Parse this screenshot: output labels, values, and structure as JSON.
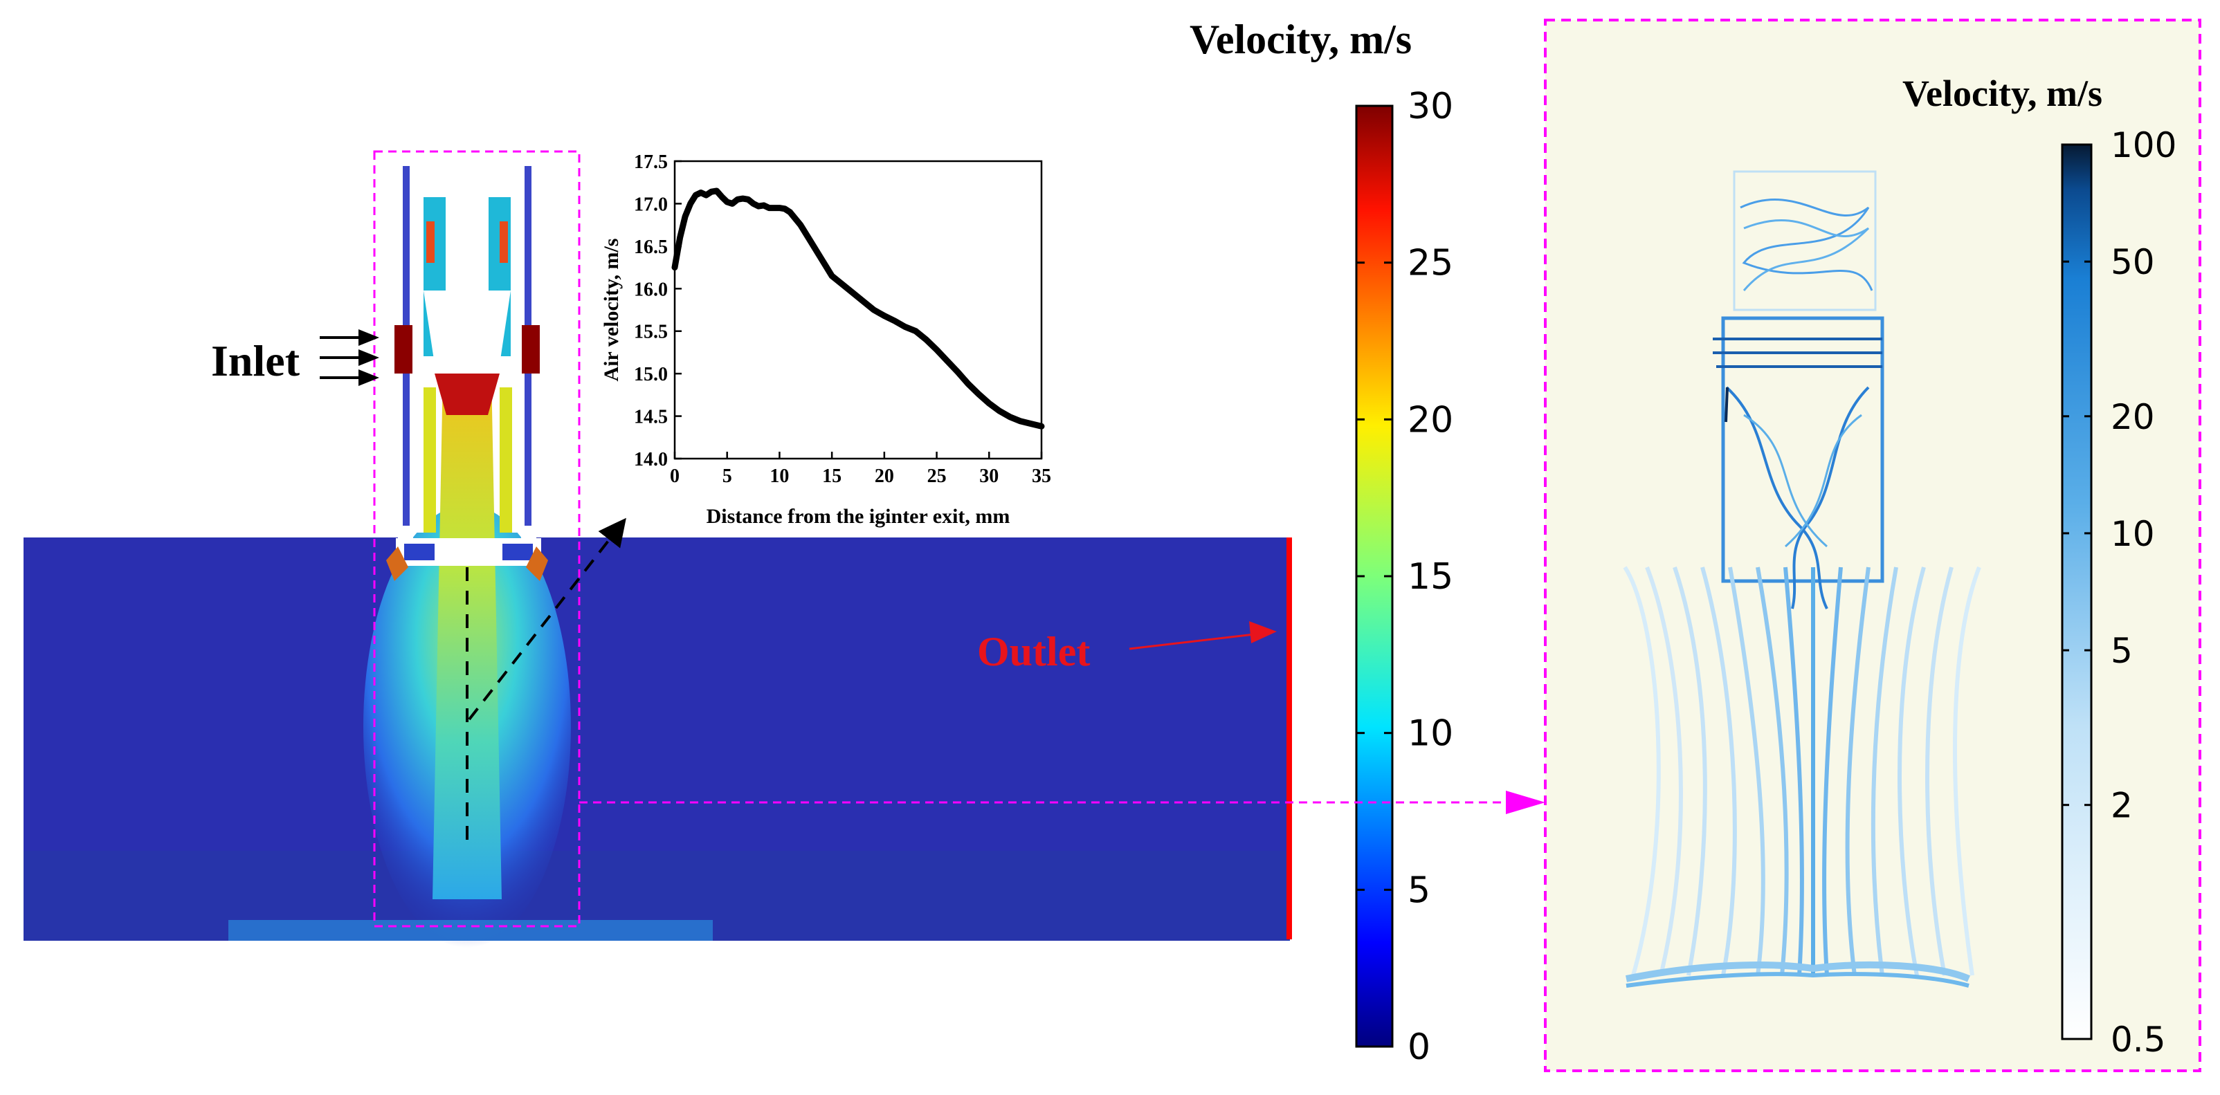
{
  "labels": {
    "inlet": "Inlet",
    "outlet": "Outlet"
  },
  "left_colorbar": {
    "title": "Velocity, m/s",
    "ticks": [
      "30",
      "25",
      "20",
      "15",
      "10",
      "5",
      "0"
    ],
    "min": 0,
    "max": 30
  },
  "right_colorbar": {
    "title": "Velocity, m/s",
    "ticks": [
      "100",
      "50",
      "20",
      "10",
      "5",
      "2",
      "0.5"
    ],
    "scale": "log",
    "min": 0.5,
    "max": 100
  },
  "chart_data": {
    "type": "line",
    "title": "",
    "xlabel": "Distance from the iginter exit, mm",
    "ylabel": "Air velocity, m/s",
    "xlim": [
      0,
      35
    ],
    "ylim": [
      14.0,
      17.5
    ],
    "xticks": [
      "0",
      "5",
      "10",
      "15",
      "20",
      "25",
      "30",
      "35"
    ],
    "yticks": [
      "14.0",
      "14.5",
      "15.0",
      "15.5",
      "16.0",
      "16.5",
      "17.0",
      "17.5"
    ],
    "series": [
      {
        "name": "Air velocity",
        "x": [
          0,
          0.5,
          1,
          1.5,
          2,
          2.5,
          3,
          3.5,
          4,
          4.5,
          5,
          5.5,
          6,
          6.5,
          7,
          7.5,
          8,
          8.5,
          9,
          9.5,
          10,
          10.5,
          11,
          12,
          13,
          14,
          15,
          16,
          17,
          18,
          19,
          20,
          21,
          22,
          23,
          24,
          25,
          26,
          27,
          28,
          29,
          30,
          31,
          32,
          33,
          34,
          35
        ],
        "values": [
          16.25,
          16.6,
          16.85,
          17.0,
          17.1,
          17.13,
          17.1,
          17.14,
          17.15,
          17.08,
          17.02,
          17.0,
          17.05,
          17.06,
          17.05,
          17.0,
          16.97,
          16.98,
          16.95,
          16.95,
          16.95,
          16.94,
          16.9,
          16.75,
          16.55,
          16.35,
          16.15,
          16.05,
          15.95,
          15.85,
          15.75,
          15.68,
          15.62,
          15.55,
          15.5,
          15.4,
          15.28,
          15.15,
          15.02,
          14.88,
          14.76,
          14.65,
          14.56,
          14.49,
          14.44,
          14.41,
          14.38
        ]
      }
    ]
  }
}
